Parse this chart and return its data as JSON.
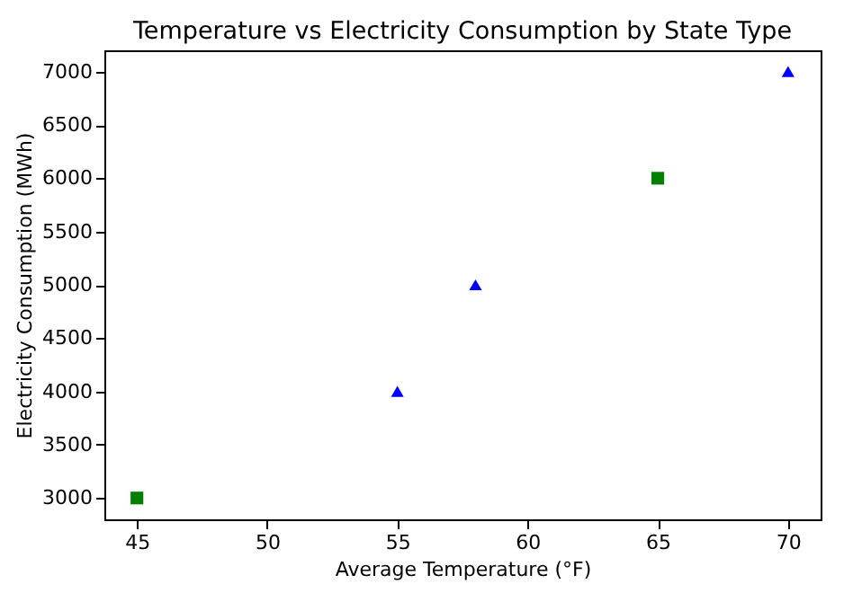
{
  "chart_data": {
    "type": "scatter",
    "title": "Temperature vs Electricity Consumption by State Type",
    "xlabel": "Average Temperature (°F)",
    "ylabel": "Electricity Consumption (MWh)",
    "series": [
      {
        "color": "#008000",
        "marker": "square",
        "x": [
          45,
          65
        ],
        "values": [
          3000,
          6000
        ]
      },
      {
        "color": "#0000ff",
        "marker": "triangle",
        "x": [
          55,
          58,
          70
        ],
        "values": [
          4000,
          5000,
          7000
        ]
      }
    ],
    "xlim": [
      43.75,
      71.25
    ],
    "xticks": [
      45,
      50,
      55,
      60,
      65,
      70
    ],
    "ylim": [
      2800,
      7200
    ],
    "yticks": [
      3000,
      3500,
      4000,
      4500,
      5000,
      5500,
      6000,
      6500,
      7000
    ],
    "grid": false,
    "legend": false
  }
}
